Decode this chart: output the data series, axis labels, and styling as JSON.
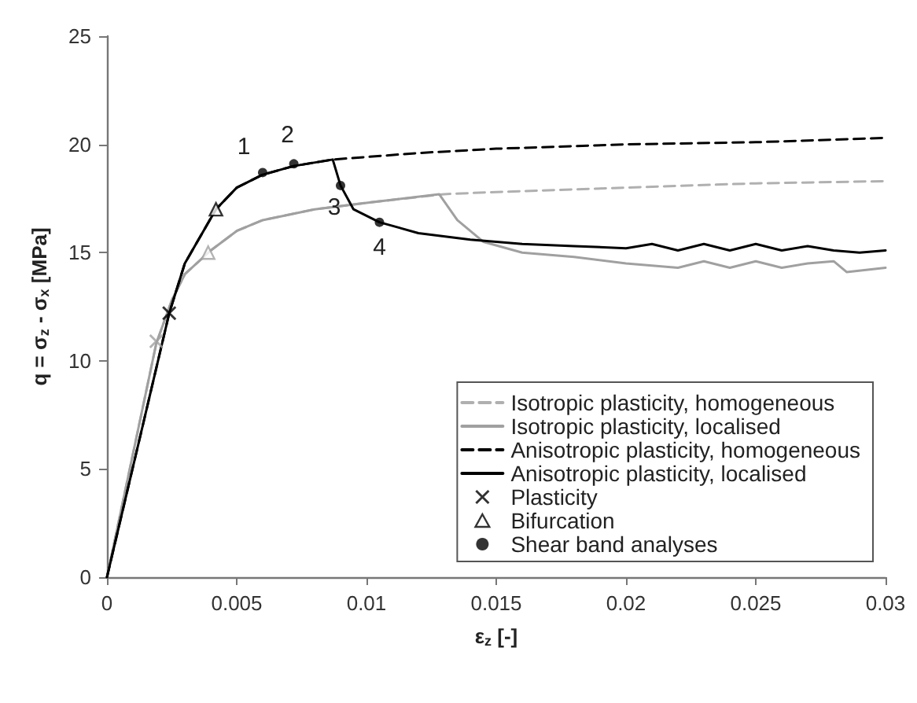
{
  "chart_data": {
    "type": "line",
    "xlabel": "ε$_{z}$ [-]",
    "ylabel": "q = σ$_{z}$ - σ$_{x}$ [MPa]",
    "xlim": [
      0,
      0.03
    ],
    "xticks": [
      0,
      0.005,
      0.01,
      0.015,
      0.02,
      0.025,
      0.03
    ],
    "ylim": [
      0,
      25
    ],
    "yticks": [
      0,
      5,
      10,
      15,
      20,
      25
    ],
    "grid": false,
    "legend": "bottom right",
    "marker": "none",
    "series": [
      {
        "name": "Isotropic plasticity, homogeneous",
        "color": "#b0b0b0",
        "line_style": "dashed",
        "x": [
          0,
          0.0019,
          0.0025,
          0.003,
          0.004,
          0.005,
          0.006,
          0.008,
          0.01,
          0.013,
          0.015,
          0.02,
          0.025,
          0.03
        ],
        "values": [
          0,
          10.8,
          12.8,
          14,
          15.1,
          16,
          16.5,
          17,
          17.3,
          17.7,
          17.8,
          18,
          18.2,
          18.3
        ]
      },
      {
        "name": "Isotropic plasticity, localised",
        "color": "#a0a0a0",
        "line_style": "solid",
        "x": [
          0,
          0.0019,
          0.0025,
          0.003,
          0.004,
          0.005,
          0.006,
          0.008,
          0.01,
          0.0128,
          0.0135,
          0.0145,
          0.016,
          0.018,
          0.02,
          0.022,
          0.023,
          0.024,
          0.025,
          0.026,
          0.027,
          0.028,
          0.0285,
          0.03
        ],
        "values": [
          0,
          10.8,
          12.8,
          14,
          15.1,
          16,
          16.5,
          17,
          17.3,
          17.7,
          16.5,
          15.5,
          15,
          14.8,
          14.5,
          14.3,
          14.6,
          14.3,
          14.6,
          14.3,
          14.5,
          14.6,
          14.1,
          14.3
        ]
      },
      {
        "name": "Anisotropic plasticity, homogeneous",
        "color": "#000000",
        "line_style": "dashed",
        "x": [
          0,
          0.0024,
          0.003,
          0.0042,
          0.005,
          0.006,
          0.0072,
          0.0087,
          0.012,
          0.015,
          0.02,
          0.025,
          0.03
        ],
        "values": [
          0,
          12.2,
          14.5,
          17,
          18,
          18.6,
          19,
          19.3,
          19.6,
          19.8,
          20,
          20.1,
          20.3
        ]
      },
      {
        "name": "Anisotropic plasticity, localised",
        "color": "#000000",
        "line_style": "solid",
        "x": [
          0,
          0.0024,
          0.003,
          0.0042,
          0.005,
          0.006,
          0.0072,
          0.0087,
          0.009,
          0.0095,
          0.0105,
          0.012,
          0.014,
          0.016,
          0.018,
          0.02,
          0.021,
          0.022,
          0.023,
          0.024,
          0.025,
          0.026,
          0.027,
          0.028,
          0.029,
          0.03
        ],
        "values": [
          0,
          12.2,
          14.5,
          17,
          18,
          18.6,
          19,
          19.3,
          18.1,
          17,
          16.4,
          15.9,
          15.6,
          15.4,
          15.3,
          15.2,
          15.4,
          15.1,
          15.4,
          15.1,
          15.4,
          15.1,
          15.3,
          15.1,
          15,
          15.1
        ]
      },
      {
        "name": "Plasticity",
        "type": "scatter",
        "marker": "cross",
        "colors": [
          "#a0a0a0",
          "#000000"
        ],
        "x": [
          0.0019,
          0.0024
        ],
        "values": [
          10.9,
          12.2
        ]
      },
      {
        "name": "Bifurcation",
        "type": "scatter",
        "marker": "triangle",
        "colors": [
          "#a0a0a0",
          "#000000"
        ],
        "x": [
          0.0039,
          0.0042
        ],
        "values": [
          15,
          17
        ]
      },
      {
        "name": "Shear band analyses",
        "type": "scatter",
        "marker": "circle",
        "color": "#000000",
        "x": [
          0.006,
          0.0072,
          0.009,
          0.0105
        ],
        "values": [
          18.7,
          19.1,
          18.1,
          16.4
        ]
      }
    ],
    "annotations": [
      {
        "text": "1",
        "x": 0.006,
        "y": 18.7
      },
      {
        "text": "2",
        "x": 0.0072,
        "y": 19.1
      },
      {
        "text": "3",
        "x": 0.009,
        "y": 18.1
      },
      {
        "text": "4",
        "x": 0.0105,
        "y": 16.4
      }
    ]
  }
}
